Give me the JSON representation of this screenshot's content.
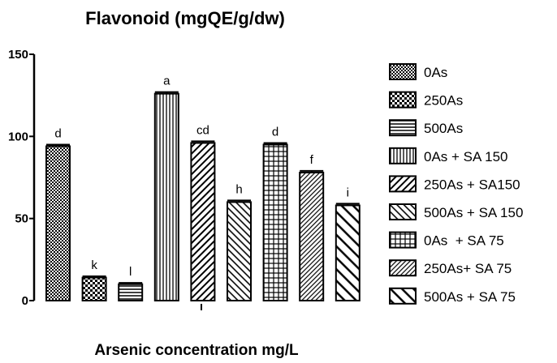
{
  "chart_data": {
    "type": "bar",
    "title": "Flavonoid (mgQE/g/dw)",
    "xlabel": "Arsenic concentration mg/L",
    "ylabel": "",
    "ylim": [
      0,
      150
    ],
    "yticks": [
      "0",
      "50",
      "100",
      "150"
    ],
    "legend_position": "right",
    "series": [
      {
        "name": "0As",
        "value": 94,
        "error": 1,
        "letter": "d",
        "pattern": "fine-check"
      },
      {
        "name": "250As",
        "value": 14,
        "error": 0.8,
        "letter": "k",
        "pattern": "check"
      },
      {
        "name": "500As",
        "value": 10,
        "error": 0.8,
        "letter": "l",
        "pattern": "hlines"
      },
      {
        "name": "0As + SA 150",
        "value": 126,
        "error": 1,
        "letter": "a",
        "pattern": "vlines"
      },
      {
        "name": "250As + SA150",
        "value": 96,
        "error": 1,
        "letter": "cd",
        "pattern": "diag-up"
      },
      {
        "name": "500As + SA 150",
        "value": 60,
        "error": 1,
        "letter": "h",
        "pattern": "diag-down"
      },
      {
        "name": "0As  + SA 75",
        "value": 95,
        "error": 1,
        "letter": "d",
        "pattern": "grid"
      },
      {
        "name": "250As+ SA 75",
        "value": 78,
        "error": 1,
        "letter": "f",
        "pattern": "diag-up-dense"
      },
      {
        "name": "500As + SA 75",
        "value": 58,
        "error": 1,
        "letter": "i",
        "pattern": "diag-down-wide"
      }
    ]
  }
}
